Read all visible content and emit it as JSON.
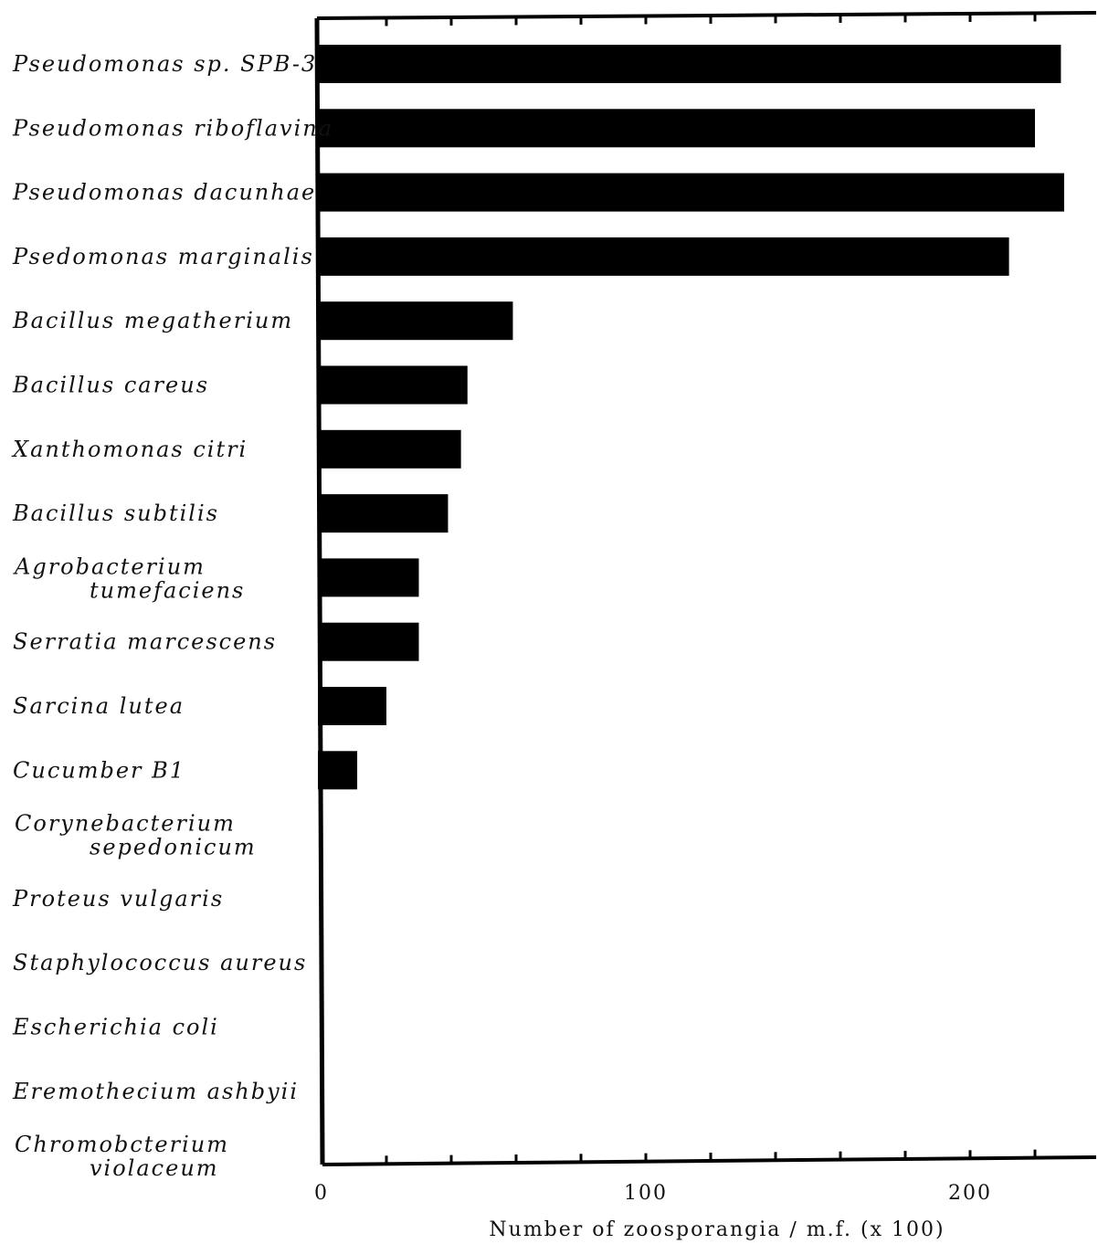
{
  "chart_data": {
    "type": "bar",
    "orientation": "horizontal",
    "title": "",
    "xlabel": "Number of zoosporangia  ∕ m.f. (x 100)",
    "ylabel": "",
    "xlim": [
      0,
      240
    ],
    "grid": false,
    "legend": "none",
    "bar_color": "#000000",
    "x_ticks": [
      {
        "value": 0,
        "label": "0"
      },
      {
        "value": 100,
        "label": "100"
      },
      {
        "value": 200,
        "label": "200"
      }
    ],
    "categories": [
      {
        "lines": [
          "Pseudomonas sp. SPB-3"
        ],
        "value": 228
      },
      {
        "lines": [
          "Pseudomonas riboflavina"
        ],
        "value": 220
      },
      {
        "lines": [
          "Pseudomonas dacunhae"
        ],
        "value": 229
      },
      {
        "lines": [
          "Psedomonas marginalis"
        ],
        "value": 212
      },
      {
        "lines": [
          "Bacillus megatherium"
        ],
        "value": 59
      },
      {
        "lines": [
          "Bacillus careus"
        ],
        "value": 45
      },
      {
        "lines": [
          "Xanthomonas citri"
        ],
        "value": 43
      },
      {
        "lines": [
          "Bacillus subtilis"
        ],
        "value": 39
      },
      {
        "lines": [
          "Agrobacterium",
          "tumefaciens"
        ],
        "value": 30
      },
      {
        "lines": [
          "Serratia marcescens"
        ],
        "value": 30
      },
      {
        "lines": [
          "Sarcina lutea"
        ],
        "value": 20
      },
      {
        "lines": [
          "Cucumber B1"
        ],
        "value": 11
      },
      {
        "lines": [
          "Corynebacterium",
          "sepedonicum"
        ],
        "value": 0
      },
      {
        "lines": [
          "Proteus vulgaris"
        ],
        "value": 0
      },
      {
        "lines": [
          "Staphylococcus aureus"
        ],
        "value": 0
      },
      {
        "lines": [
          "Escherichia coli"
        ],
        "value": 0
      },
      {
        "lines": [
          "Eremothecium ashbyii"
        ],
        "value": 0
      },
      {
        "lines": [
          "Chromobcterium",
          "violaceum"
        ],
        "value": 0
      }
    ]
  }
}
